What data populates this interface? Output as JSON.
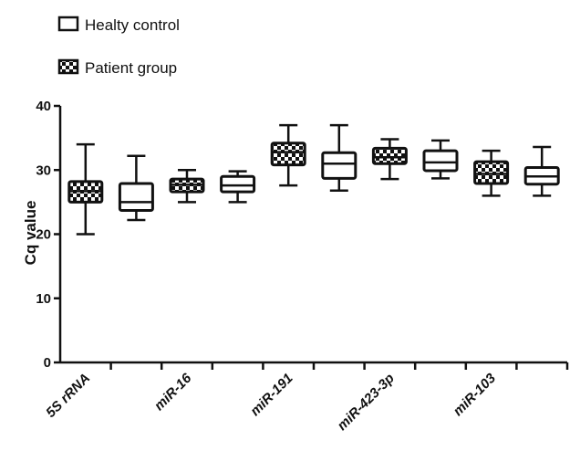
{
  "legend": {
    "control_label": "Healty control",
    "patient_label": "Patient group",
    "placement": "top-left"
  },
  "chart_data": {
    "type": "boxplot",
    "title": "",
    "xlabel": "",
    "ylabel": "Cq value",
    "ylim": [
      0,
      40
    ],
    "yticks": [
      0,
      10,
      20,
      30,
      40
    ],
    "grid": false,
    "categories": [
      "5S rRNA",
      "miR-16",
      "miR-191",
      "miR-423-3p",
      "miR-103"
    ],
    "series": [
      {
        "name": "Patient group",
        "pattern": "checkered",
        "boxes": [
          {
            "min": 20.0,
            "q1": 25.0,
            "median": 26.7,
            "q3": 28.2,
            "max": 34.0
          },
          {
            "min": 25.0,
            "q1": 26.6,
            "median": 27.7,
            "q3": 28.6,
            "max": 30.0
          },
          {
            "min": 27.6,
            "q1": 30.8,
            "median": 32.8,
            "q3": 34.2,
            "max": 37.0
          },
          {
            "min": 28.6,
            "q1": 31.0,
            "median": 32.0,
            "q3": 33.4,
            "max": 34.8
          },
          {
            "min": 26.0,
            "q1": 27.9,
            "median": 29.4,
            "q3": 31.3,
            "max": 33.0
          }
        ]
      },
      {
        "name": "Healty control",
        "pattern": "white",
        "boxes": [
          {
            "min": 22.2,
            "q1": 23.7,
            "median": 25.0,
            "q3": 27.9,
            "max": 32.2
          },
          {
            "min": 25.0,
            "q1": 26.6,
            "median": 27.6,
            "q3": 29.0,
            "max": 29.8
          },
          {
            "min": 26.8,
            "q1": 28.7,
            "median": 31.0,
            "q3": 32.7,
            "max": 37.0
          },
          {
            "min": 28.7,
            "q1": 29.9,
            "median": 31.2,
            "q3": 33.0,
            "max": 34.6
          },
          {
            "min": 26.0,
            "q1": 27.8,
            "median": 29.0,
            "q3": 30.4,
            "max": 33.6
          }
        ]
      }
    ]
  }
}
